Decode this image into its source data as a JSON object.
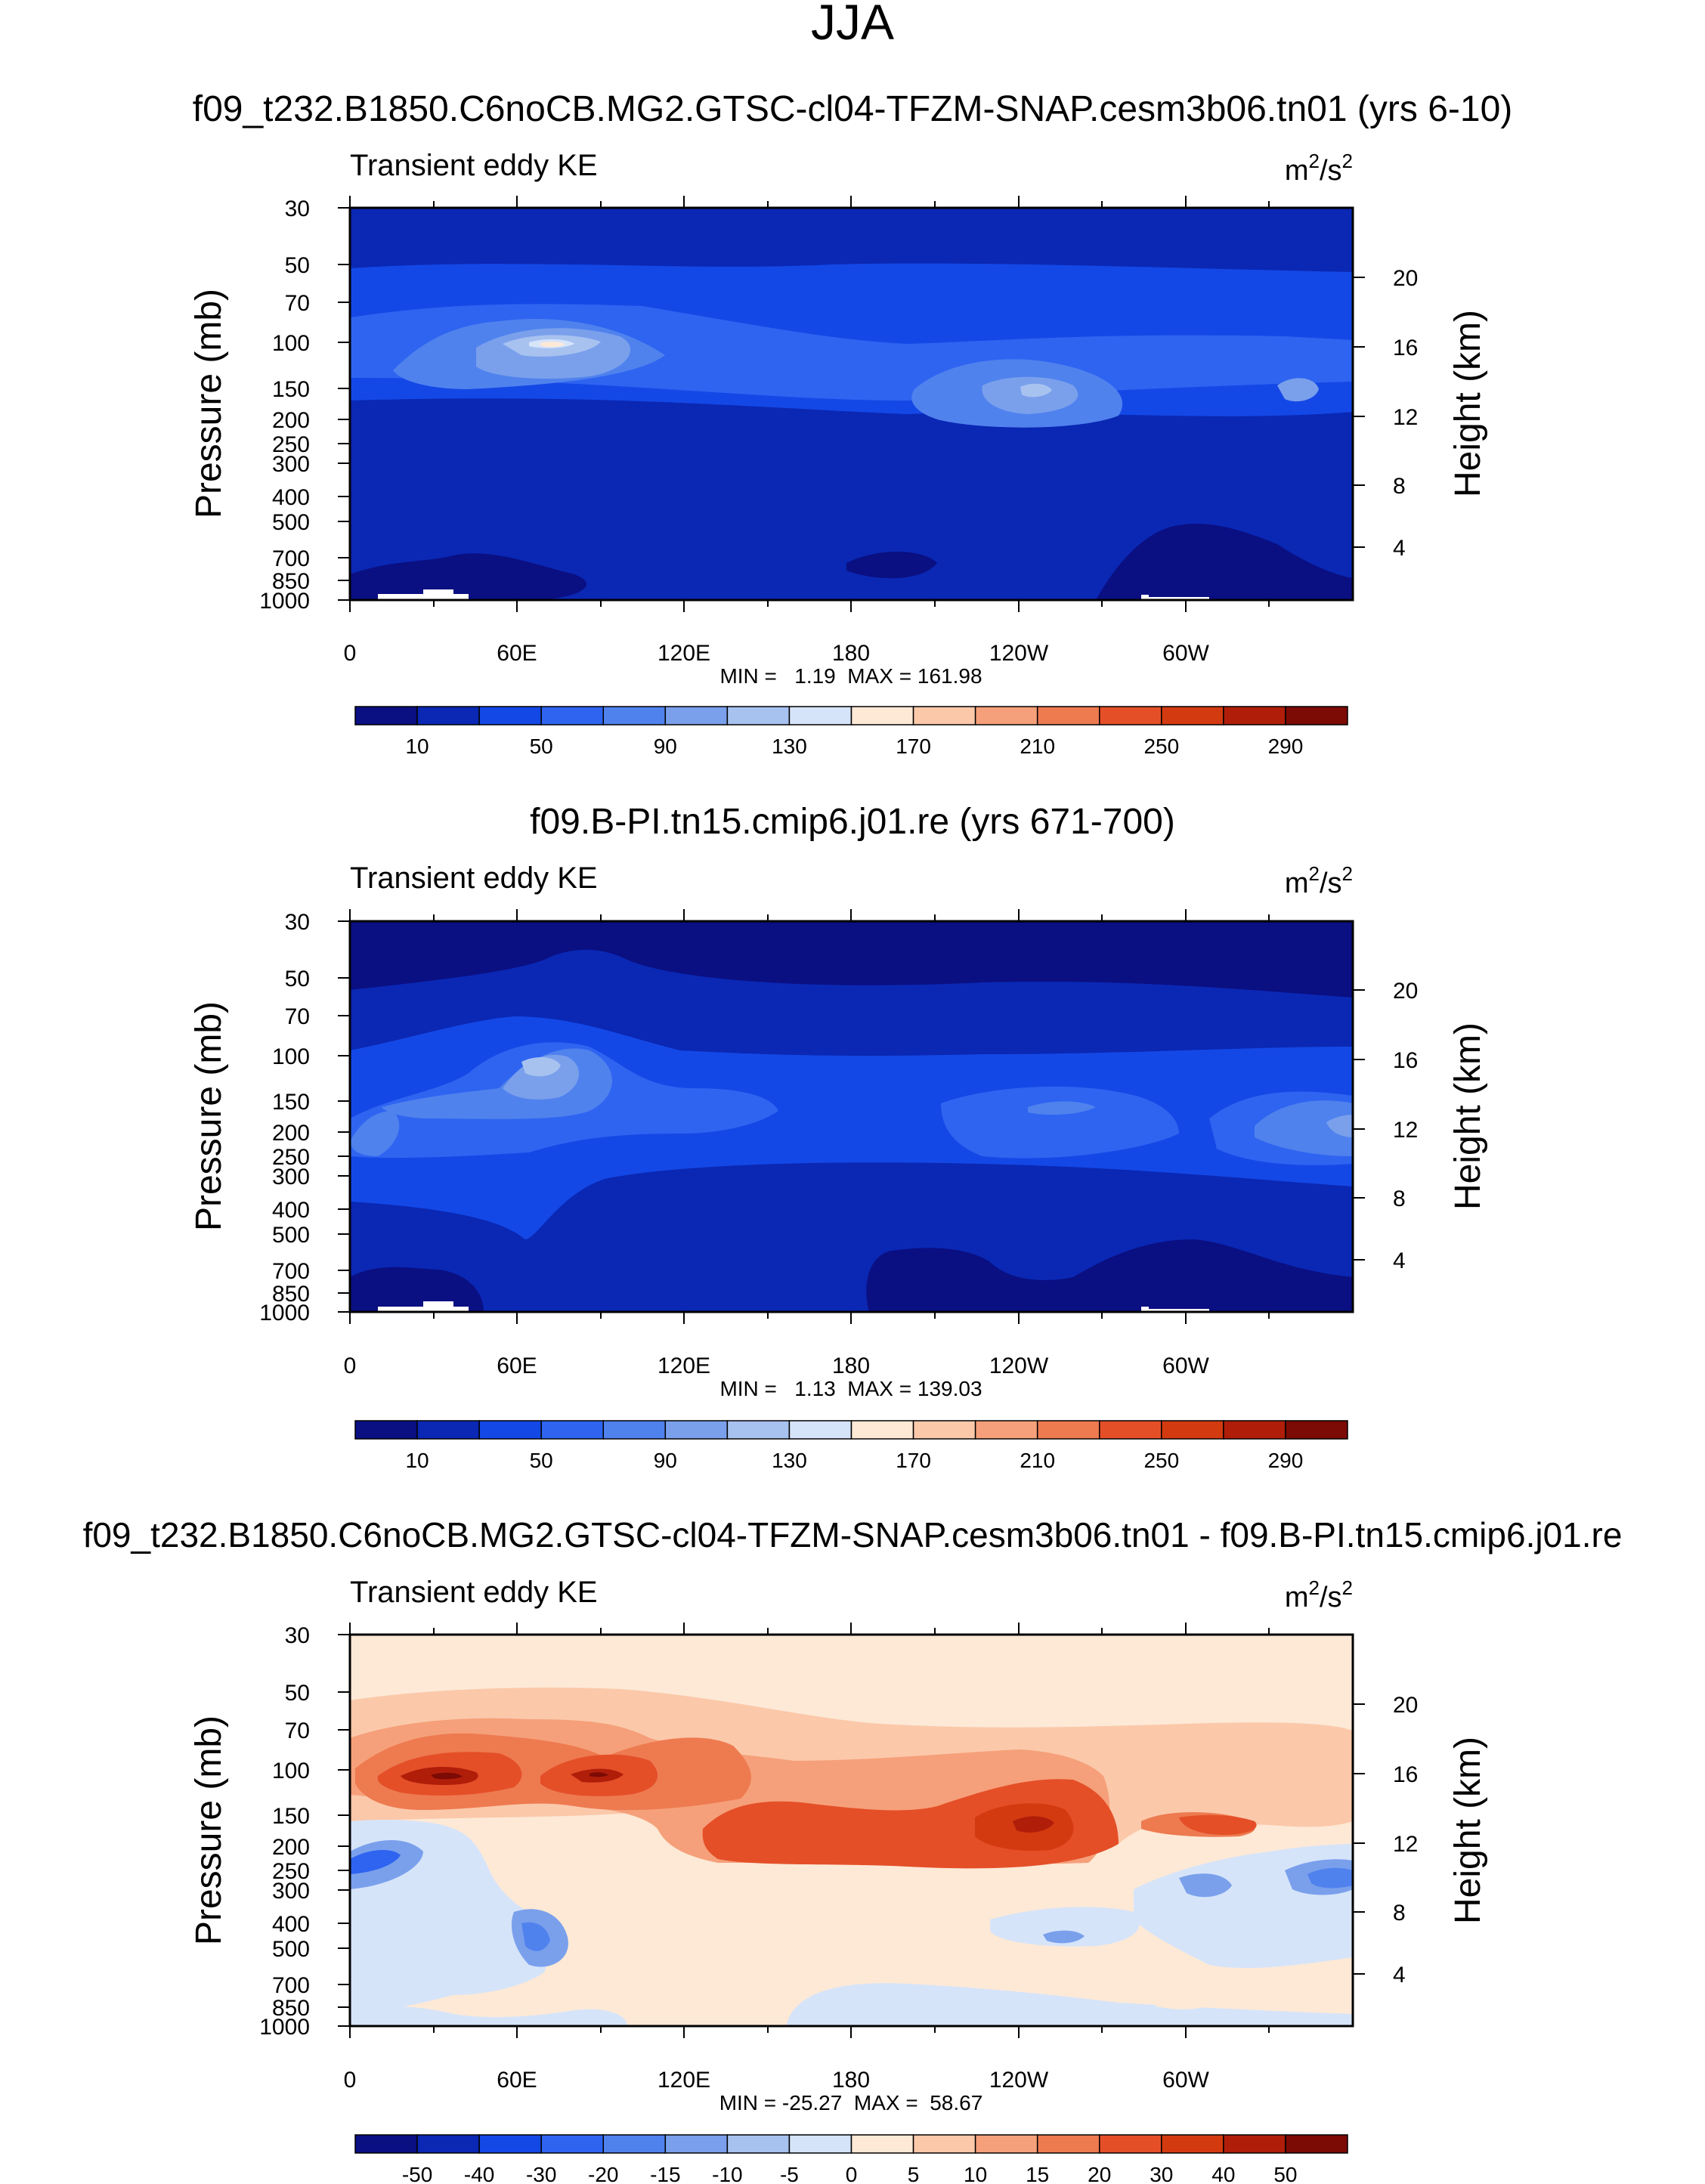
{
  "figure": {
    "title": "JJA"
  },
  "chart_data": [
    {
      "type": "heatmap",
      "title": "f09_t232.B1850.C6noCB.MG2.GTSC-cl04-TFZM-SNAP.cesm3b06.tn01 (yrs 6-10)",
      "variable": "Transient eddy KE",
      "units_base": "m",
      "units_sup1": "2",
      "units_mid": "/s",
      "units_sup2": "2",
      "ylabel": "Pressure (mb)",
      "y2label": "Height (km)",
      "pressure_ticks": [
        "30",
        "50",
        "70",
        "100",
        "150",
        "200",
        "250",
        "300",
        "400",
        "500",
        "700",
        "850",
        "1000"
      ],
      "height_ticks": [
        "20",
        "16",
        "12",
        "8",
        "4"
      ],
      "lon_ticks": [
        "0",
        "60E",
        "120E",
        "180",
        "120W",
        "60W"
      ],
      "stats": "MIN =   1.19  MAX = 161.98",
      "colorbar_labels": [
        "10",
        "50",
        "90",
        "130",
        "170",
        "210",
        "250",
        "290"
      ],
      "colorbar_colors": [
        "#0a0f82",
        "#0a28b4",
        "#1448e6",
        "#2e64f0",
        "#5082ee",
        "#7aa0ec",
        "#a8c2f0",
        "#d6e4fa",
        "#fde9d6",
        "#fbc8aa",
        "#f5a07a",
        "#ee7a50",
        "#e44f28",
        "#d43a10",
        "#b01e0a",
        "#7c0a05"
      ],
      "zmin": 1.19,
      "zmax": 161.98
    },
    {
      "type": "heatmap",
      "title": "f09.B-PI.tn15.cmip6.j01.re (yrs 671-700)",
      "variable": "Transient eddy KE",
      "units_base": "m",
      "units_sup1": "2",
      "units_mid": "/s",
      "units_sup2": "2",
      "ylabel": "Pressure (mb)",
      "y2label": "Height (km)",
      "pressure_ticks": [
        "30",
        "50",
        "70",
        "100",
        "150",
        "200",
        "250",
        "300",
        "400",
        "500",
        "700",
        "850",
        "1000"
      ],
      "height_ticks": [
        "20",
        "16",
        "12",
        "8",
        "4"
      ],
      "lon_ticks": [
        "0",
        "60E",
        "120E",
        "180",
        "120W",
        "60W"
      ],
      "stats": "MIN =   1.13  MAX = 139.03",
      "colorbar_labels": [
        "10",
        "50",
        "90",
        "130",
        "170",
        "210",
        "250",
        "290"
      ],
      "colorbar_colors": [
        "#0a0f82",
        "#0a28b4",
        "#1448e6",
        "#2e64f0",
        "#5082ee",
        "#7aa0ec",
        "#a8c2f0",
        "#d6e4fa",
        "#fde9d6",
        "#fbc8aa",
        "#f5a07a",
        "#ee7a50",
        "#e44f28",
        "#d43a10",
        "#b01e0a",
        "#7c0a05"
      ],
      "zmin": 1.13,
      "zmax": 139.03
    },
    {
      "type": "heatmap",
      "title": "f09_t232.B1850.C6noCB.MG2.GTSC-cl04-TFZM-SNAP.cesm3b06.tn01 - f09.B-PI.tn15.cmip6.j01.re",
      "variable": "Transient eddy KE",
      "units_base": "m",
      "units_sup1": "2",
      "units_mid": "/s",
      "units_sup2": "2",
      "ylabel": "Pressure (mb)",
      "y2label": "Height (km)",
      "pressure_ticks": [
        "30",
        "50",
        "70",
        "100",
        "150",
        "200",
        "250",
        "300",
        "400",
        "500",
        "700",
        "850",
        "1000"
      ],
      "height_ticks": [
        "20",
        "16",
        "12",
        "8",
        "4"
      ],
      "lon_ticks": [
        "0",
        "60E",
        "120E",
        "180",
        "120W",
        "60W"
      ],
      "stats": "MIN = -25.27  MAX =  58.67",
      "colorbar_labels": [
        "-50",
        "-40",
        "-30",
        "-20",
        "-15",
        "-10",
        "-5",
        "0",
        "5",
        "10",
        "15",
        "20",
        "30",
        "40",
        "50"
      ],
      "colorbar_colors": [
        "#0a0f82",
        "#0a28b4",
        "#1448e6",
        "#2e64f0",
        "#5082ee",
        "#7aa0ec",
        "#a8c2f0",
        "#d6e4fa",
        "#fde9d6",
        "#fbc8aa",
        "#f5a07a",
        "#ee7a50",
        "#e44f28",
        "#d43a10",
        "#b01e0a",
        "#7c0a05"
      ],
      "zmin": -25.27,
      "zmax": 58.67
    }
  ]
}
